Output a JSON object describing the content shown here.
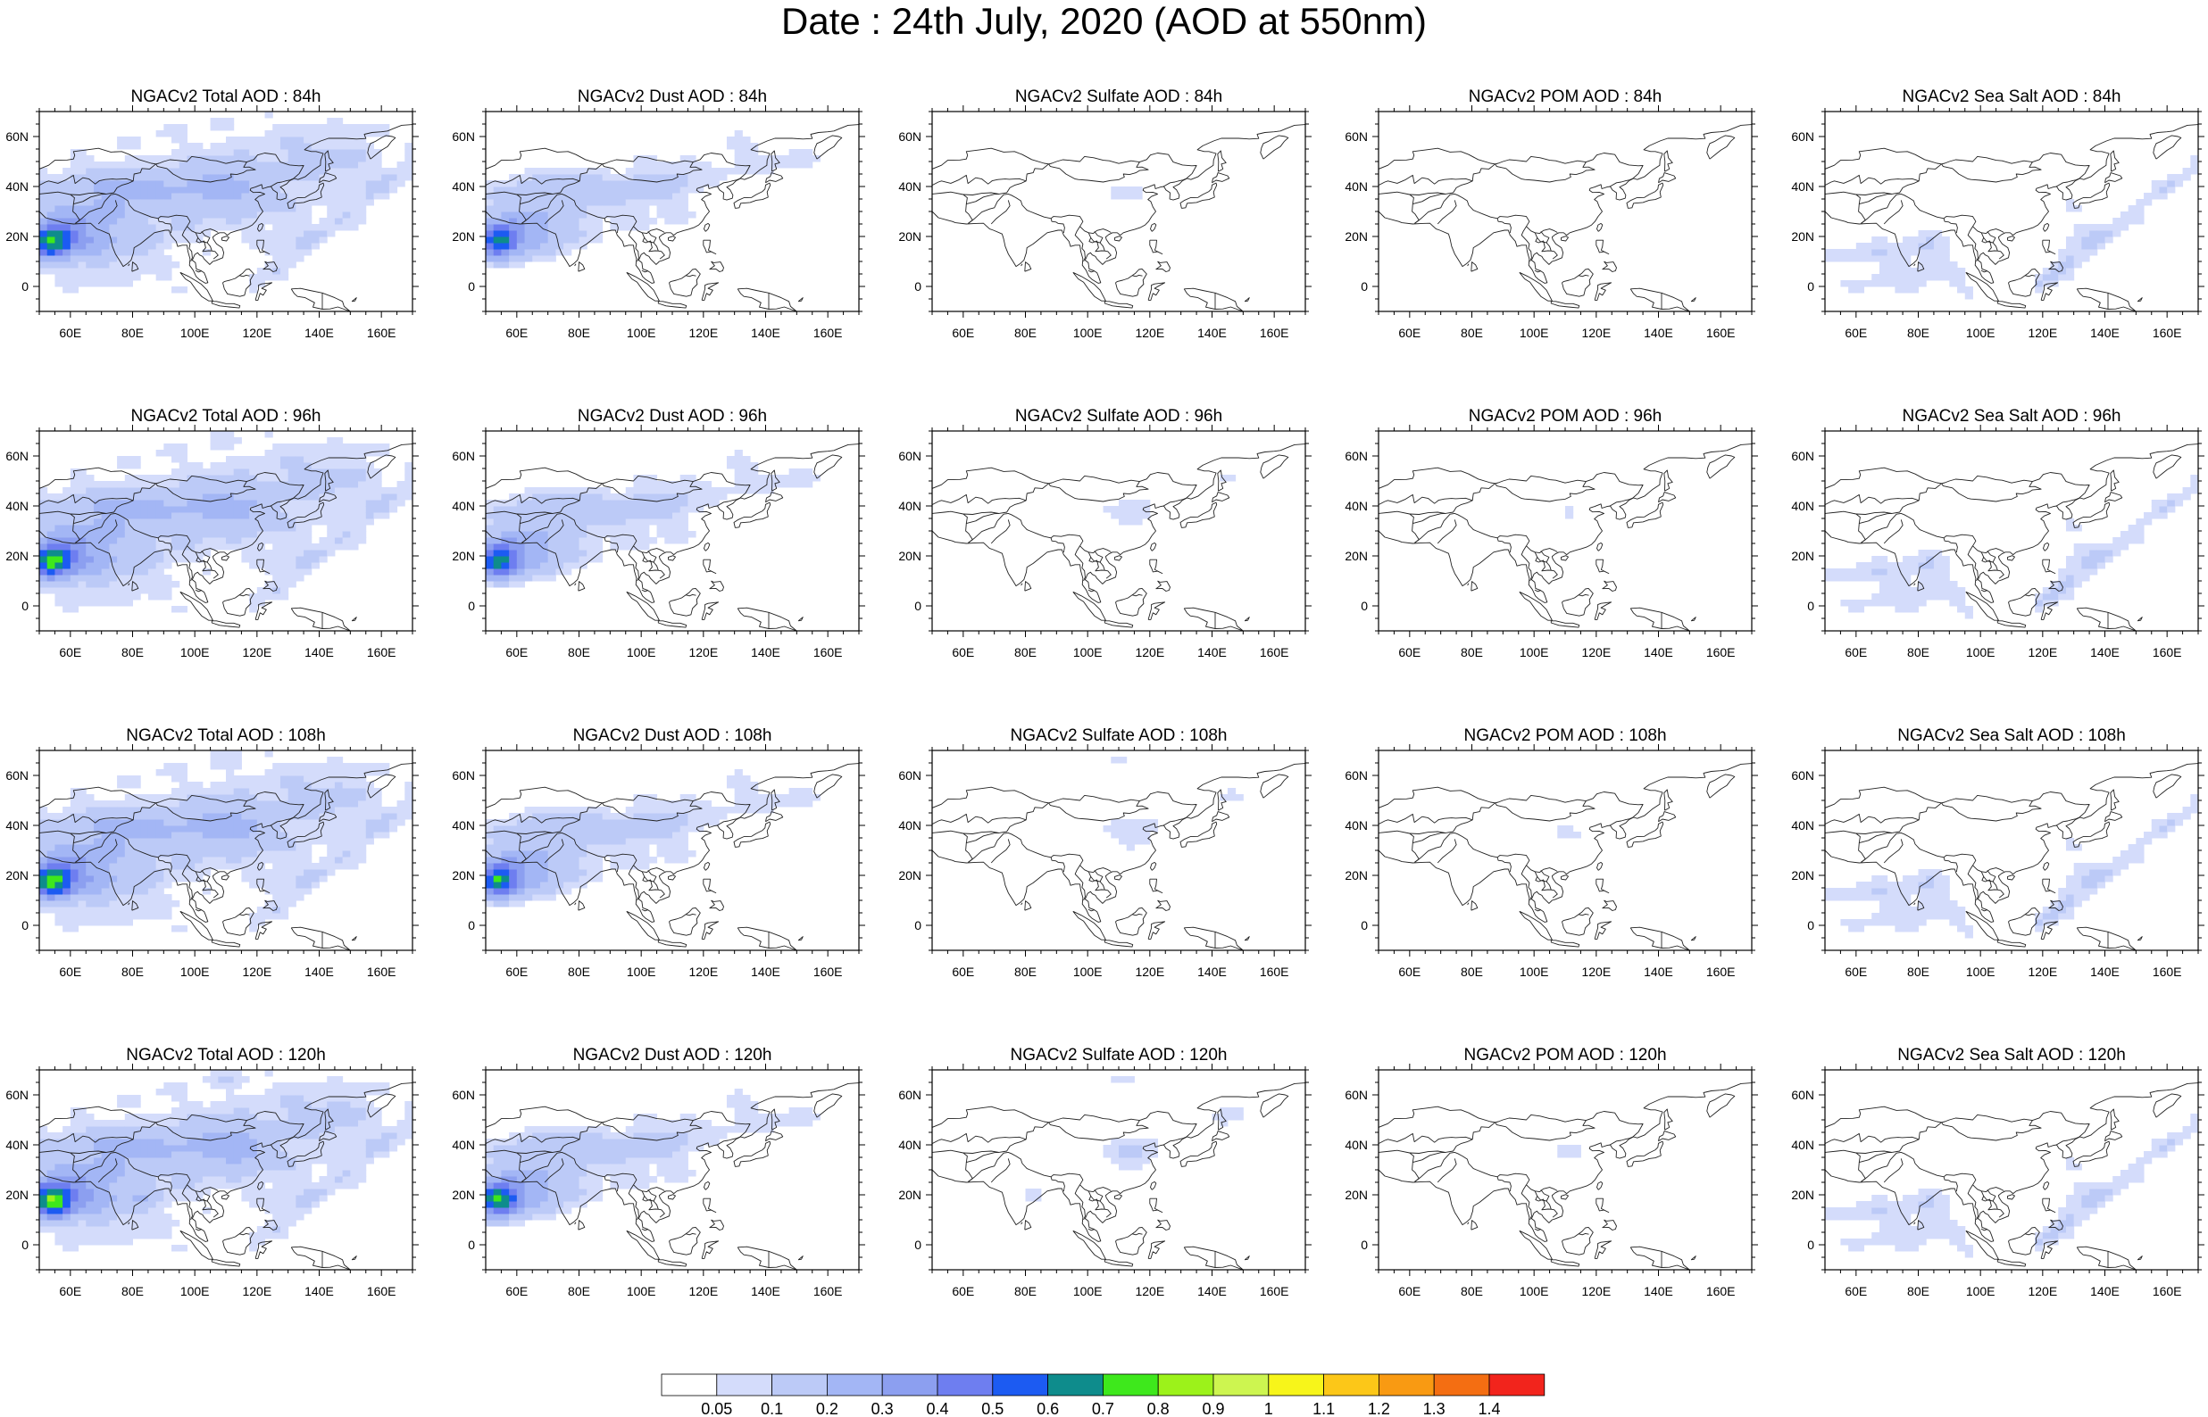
{
  "figure_title": "Date : 24th July, 2020 (AOD at 550nm)",
  "axes": {
    "lon_ticks": [
      "60E",
      "80E",
      "100E",
      "120E",
      "140E",
      "160E"
    ],
    "lat_ticks": [
      "60N",
      "40N",
      "20N",
      "0"
    ],
    "lon_range": [
      50,
      170
    ],
    "lat_range": [
      -10,
      70
    ]
  },
  "panels": [
    {
      "title": "NGACv2 Total AOD : 84h",
      "species": "total",
      "lead_hours": 84
    },
    {
      "title": "NGACv2 Dust AOD : 84h",
      "species": "dust",
      "lead_hours": 84
    },
    {
      "title": "NGACv2 Sulfate AOD : 84h",
      "species": "sulfate",
      "lead_hours": 84
    },
    {
      "title": "NGACv2 POM AOD : 84h",
      "species": "pom",
      "lead_hours": 84
    },
    {
      "title": "NGACv2 Sea Salt AOD : 84h",
      "species": "seasalt",
      "lead_hours": 84
    },
    {
      "title": "NGACv2 Total AOD : 96h",
      "species": "total",
      "lead_hours": 96
    },
    {
      "title": "NGACv2 Dust AOD : 96h",
      "species": "dust",
      "lead_hours": 96
    },
    {
      "title": "NGACv2 Sulfate AOD : 96h",
      "species": "sulfate",
      "lead_hours": 96
    },
    {
      "title": "NGACv2 POM AOD : 96h",
      "species": "pom",
      "lead_hours": 96
    },
    {
      "title": "NGACv2 Sea Salt AOD : 96h",
      "species": "seasalt",
      "lead_hours": 96
    },
    {
      "title": "NGACv2 Total AOD : 108h",
      "species": "total",
      "lead_hours": 108
    },
    {
      "title": "NGACv2 Dust AOD : 108h",
      "species": "dust",
      "lead_hours": 108
    },
    {
      "title": "NGACv2 Sulfate AOD : 108h",
      "species": "sulfate",
      "lead_hours": 108
    },
    {
      "title": "NGACv2 POM AOD : 108h",
      "species": "pom",
      "lead_hours": 108
    },
    {
      "title": "NGACv2 Sea Salt AOD : 108h",
      "species": "seasalt",
      "lead_hours": 108
    },
    {
      "title": "NGACv2 Total AOD : 120h",
      "species": "total",
      "lead_hours": 120
    },
    {
      "title": "NGACv2 Dust AOD : 120h",
      "species": "dust",
      "lead_hours": 120
    },
    {
      "title": "NGACv2 Sulfate AOD : 120h",
      "species": "sulfate",
      "lead_hours": 120
    },
    {
      "title": "NGACv2 POM AOD : 120h",
      "species": "pom",
      "lead_hours": 120
    },
    {
      "title": "NGACv2 Sea Salt  AOD : 120h",
      "species": "seasalt",
      "lead_hours": 120
    }
  ],
  "colorbar": {
    "labels": [
      "0.05",
      "0.1",
      "0.2",
      "0.3",
      "0.4",
      "0.5",
      "0.6",
      "0.7",
      "0.8",
      "0.9",
      "1",
      "1.1",
      "1.2",
      "1.3",
      "1.4"
    ],
    "colors": [
      "#ffffff",
      "#d4dcfb",
      "#bccaf7",
      "#a3b6f5",
      "#8c9ff0",
      "#6e7ef0",
      "#1c5bf2",
      "#0e8c8c",
      "#3ee81c",
      "#9cf21a",
      "#cdf550",
      "#f7f51a",
      "#fcc718",
      "#f99a12",
      "#f46e12",
      "#f2241c"
    ]
  }
}
